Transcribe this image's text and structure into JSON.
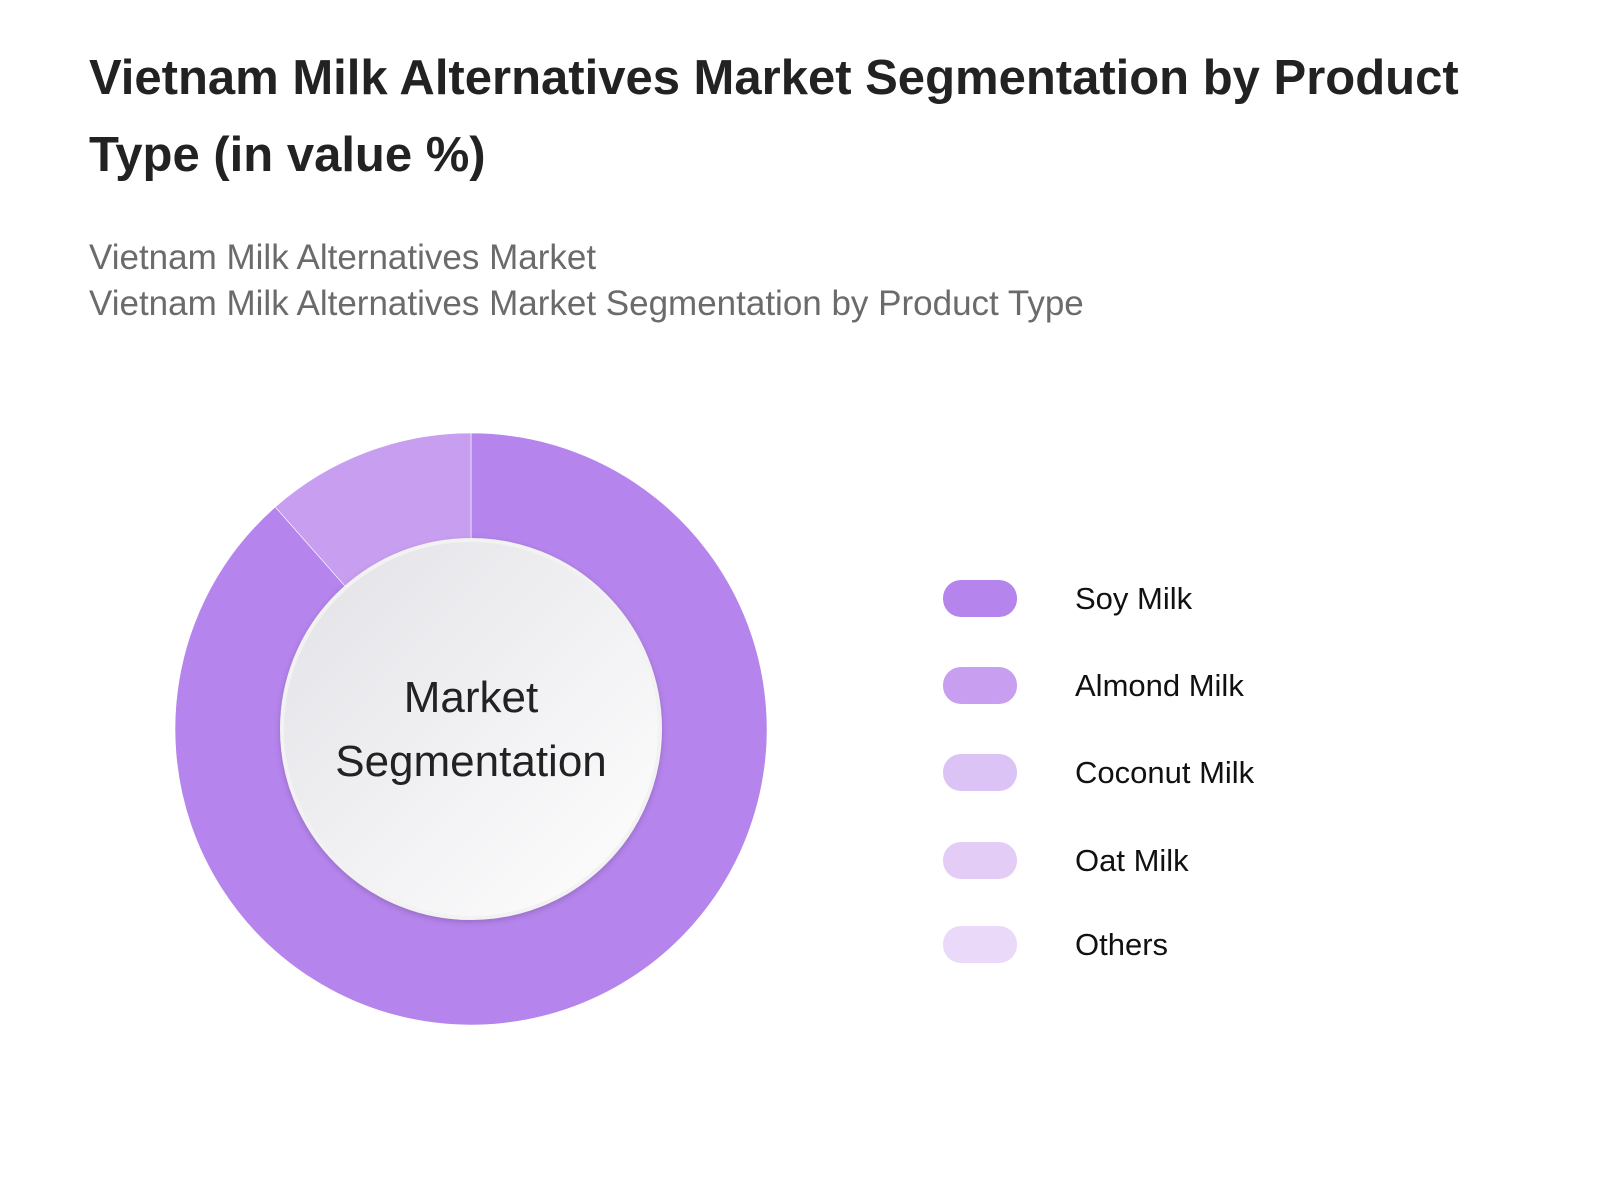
{
  "title": "Vietnam Milk Alternatives Market Segmentation by Product Type (in value %)",
  "subtitles": [
    "Vietnam Milk Alternatives Market",
    "Vietnam Milk Alternatives Market Segmentation by Product Type"
  ],
  "chart_data": {
    "type": "pie",
    "variant": "donut",
    "title": "Vietnam Milk Alternatives Market Segmentation by Product Type (in value %)",
    "center_label": [
      "Market",
      "Segmentation"
    ],
    "legend_position": "right",
    "categories": [
      "Soy Milk",
      "Almond Milk",
      "Coconut Milk",
      "Oat Milk",
      "Others"
    ],
    "values": [
      88.5,
      11.5,
      0,
      0,
      0
    ],
    "colors": [
      "#b584ec",
      "#c89ff0",
      "#dcc3f5",
      "#e3cdf6",
      "#ead9f8"
    ]
  }
}
